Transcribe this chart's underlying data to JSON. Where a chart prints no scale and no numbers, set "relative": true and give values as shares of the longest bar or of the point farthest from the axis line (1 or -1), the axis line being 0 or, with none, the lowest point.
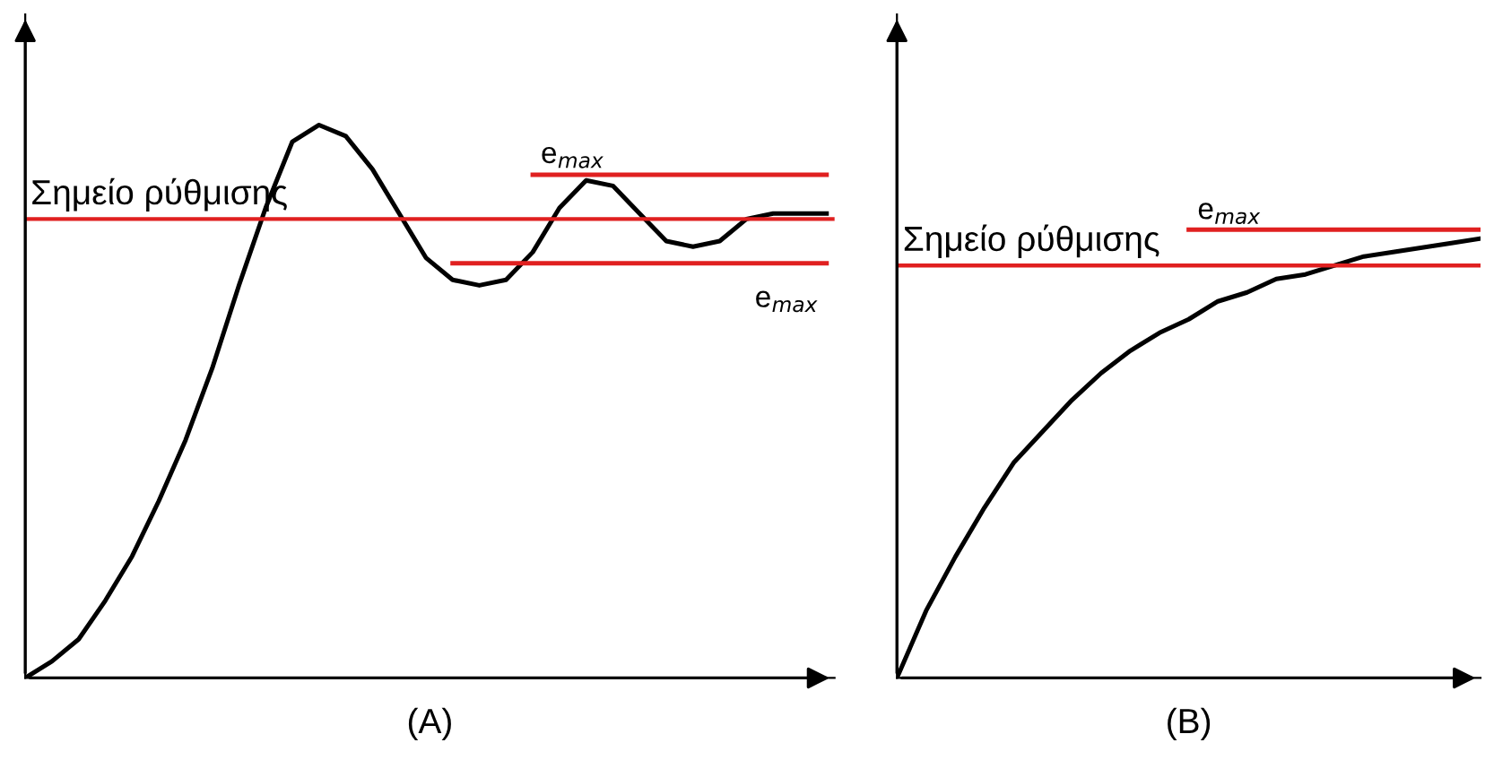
{
  "chart_data": [
    {
      "type": "line",
      "relative": true,
      "xlabel": "(A)",
      "marker": "none",
      "line_style": "solid",
      "categories": [
        null,
        null,
        null,
        null,
        null,
        null,
        null,
        null,
        null,
        null,
        null,
        null,
        null,
        null,
        null,
        null,
        null,
        null,
        null,
        null,
        null,
        null,
        null,
        null,
        null,
        null,
        null,
        null,
        null,
        null,
        null
      ],
      "series": [
        {
          "color": "#000000",
          "values": [
            0,
            0.03,
            0.07,
            0.14,
            0.22,
            0.32,
            0.43,
            0.56,
            0.71,
            0.85,
            0.97,
            1,
            0.98,
            0.92,
            0.84,
            0.76,
            0.72,
            0.71,
            0.72,
            0.77,
            0.85,
            0.9,
            0.89,
            0.84,
            0.79,
            0.78,
            0.79,
            0.83,
            0.84,
            0.84,
            0.84
          ]
        },
        {
          "color": "#e02020",
          "values": [
            null,
            null,
            null,
            null,
            null,
            null,
            null,
            null,
            null,
            null,
            null,
            null,
            null,
            null,
            null,
            null,
            null,
            null,
            null,
            0.91,
            0.91,
            0.91,
            0.91,
            0.91,
            0.91,
            0.91,
            0.91,
            0.91,
            0.91,
            0.91,
            0.91
          ]
        },
        {
          "color": "#e02020",
          "values": [
            null,
            null,
            null,
            null,
            null,
            null,
            null,
            null,
            null,
            null,
            null,
            null,
            null,
            null,
            null,
            null,
            0.75,
            0.75,
            0.75,
            0.75,
            0.75,
            0.75,
            0.75,
            0.75,
            0.75,
            0.75,
            0.75,
            0.75,
            0.75,
            0.75,
            0.75
          ]
        }
      ],
      "ref_lines": [
        {
          "axis": "y",
          "value": 0.83,
          "label": "Σημείο ρύθμισης",
          "color": "#e02020"
        }
      ],
      "annotations": [
        {
          "text": "e$_{max}$",
          "y": 0.91
        },
        {
          "text": "e$_{max}$",
          "y": 0.75
        }
      ]
    },
    {
      "type": "line",
      "relative": true,
      "xlabel": "(B)",
      "marker": "none",
      "line_style": "solid",
      "categories": [
        null,
        null,
        null,
        null,
        null,
        null,
        null,
        null,
        null,
        null,
        null,
        null,
        null,
        null,
        null,
        null,
        null,
        null,
        null,
        null,
        null
      ],
      "series": [
        {
          "color": "#000000",
          "values": [
            0,
            0.15,
            0.27,
            0.38,
            0.48,
            0.55,
            0.62,
            0.68,
            0.73,
            0.77,
            0.8,
            0.84,
            0.86,
            0.89,
            0.9,
            0.92,
            0.94,
            0.95,
            0.96,
            0.97,
            0.98
          ]
        },
        {
          "color": "#e02020",
          "values": [
            null,
            null,
            null,
            null,
            null,
            null,
            null,
            null,
            null,
            null,
            1,
            1,
            1,
            1,
            1,
            1,
            1,
            1,
            1,
            1,
            1
          ]
        }
      ],
      "ref_lines": [
        {
          "axis": "y",
          "value": 0.92,
          "label": "Σημείο ρύθμισης",
          "color": "#e02020"
        }
      ],
      "annotations": [
        {
          "text": "e$_{max}$",
          "y": 1
        }
      ]
    }
  ]
}
